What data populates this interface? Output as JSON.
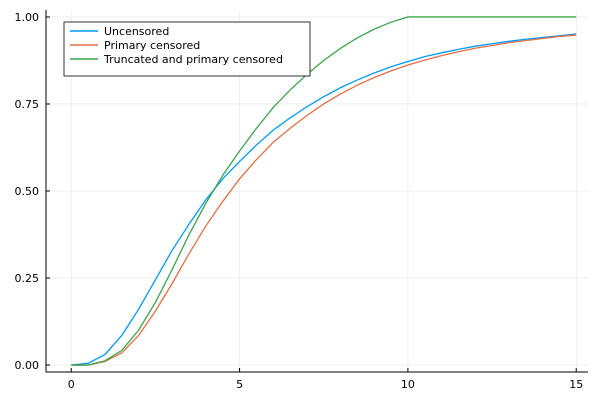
{
  "chart_data": {
    "type": "line",
    "title": "",
    "xlabel": "",
    "ylabel": "",
    "xlim": [
      -0.75,
      15.35
    ],
    "ylim": [
      -0.02,
      1.02
    ],
    "xticks": [
      0,
      5,
      10,
      15
    ],
    "xtick_labels": [
      "0",
      "5",
      "10",
      "15"
    ],
    "yticks": [
      0,
      0.25,
      0.5,
      0.75,
      1.0
    ],
    "ytick_labels": [
      "0.00",
      "0.25",
      "0.50",
      "0.75",
      "1.00"
    ],
    "grid": true,
    "legend_position": "top-left",
    "x": [
      0,
      0.5,
      1,
      1.5,
      2,
      2.5,
      3,
      3.5,
      4,
      4.5,
      5,
      5.5,
      6,
      6.5,
      7,
      7.5,
      8,
      8.5,
      9,
      9.5,
      10,
      10.5,
      11,
      11.5,
      12,
      12.5,
      13,
      13.5,
      14,
      14.5,
      15
    ],
    "series": [
      {
        "name": "Uncensored",
        "color": "#009af9",
        "values": [
          0.0,
          0.005,
          0.03,
          0.085,
          0.16,
          0.245,
          0.33,
          0.405,
          0.475,
          0.535,
          0.585,
          0.632,
          0.675,
          0.71,
          0.742,
          0.771,
          0.797,
          0.819,
          0.839,
          0.857,
          0.872,
          0.886,
          0.897,
          0.907,
          0.916,
          0.923,
          0.93,
          0.936,
          0.941,
          0.946,
          0.951
        ]
      },
      {
        "name": "Primary censored",
        "color": "#e26f46",
        "values": [
          0.0,
          0.0,
          0.01,
          0.035,
          0.085,
          0.155,
          0.235,
          0.32,
          0.4,
          0.47,
          0.535,
          0.59,
          0.64,
          0.68,
          0.717,
          0.75,
          0.779,
          0.804,
          0.826,
          0.845,
          0.862,
          0.876,
          0.889,
          0.9,
          0.91,
          0.918,
          0.926,
          0.932,
          0.938,
          0.944,
          0.948
        ]
      },
      {
        "name": "Truncated and primary censored",
        "color": "#3da44d",
        "values": [
          0.0,
          0.0,
          0.012,
          0.042,
          0.1,
          0.18,
          0.275,
          0.375,
          0.465,
          0.545,
          0.615,
          0.68,
          0.74,
          0.79,
          0.835,
          0.875,
          0.91,
          0.94,
          0.965,
          0.985,
          1.0,
          1.0,
          1.0,
          1.0,
          1.0,
          1.0,
          1.0,
          1.0,
          1.0,
          1.0,
          1.0
        ]
      }
    ]
  }
}
